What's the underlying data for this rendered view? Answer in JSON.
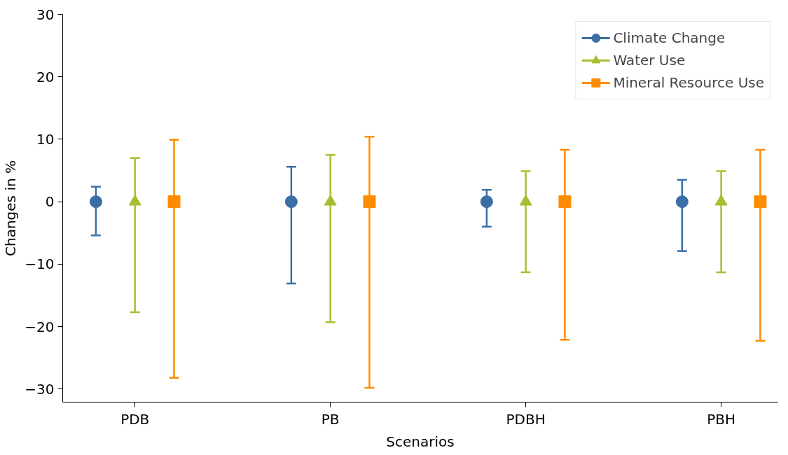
{
  "chart_data": {
    "type": "scatter",
    "xlabel": "Scenarios",
    "ylabel": "Changes in %",
    "categories": [
      "PDB",
      "PB",
      "PDBH",
      "PBH"
    ],
    "ylim": [
      -32.1,
      30
    ],
    "yticks": [
      -30,
      -20,
      -10,
      0,
      10,
      20,
      30
    ],
    "grid": false,
    "legend": "top right",
    "series": [
      {
        "name": "Climate Change",
        "color": "#3a6ea5",
        "marker": "circle",
        "values": [
          0,
          0,
          0,
          0
        ],
        "errors": [
          [
            -5.4,
            2.4
          ],
          [
            -13.1,
            5.6
          ],
          [
            -4.0,
            1.9
          ],
          [
            -7.9,
            3.5
          ]
        ]
      },
      {
        "name": "Water Use",
        "color": "#a5bf32",
        "marker": "triangle",
        "values": [
          0,
          0,
          0,
          0
        ],
        "errors": [
          [
            -17.7,
            7.0
          ],
          [
            -19.3,
            7.5
          ],
          [
            -11.3,
            4.9
          ],
          [
            -11.3,
            4.9
          ]
        ]
      },
      {
        "name": "Mineral Resource Use",
        "color": "#ff8c00",
        "marker": "square",
        "values": [
          0,
          0,
          0,
          0
        ],
        "errors": [
          [
            -28.2,
            9.9
          ],
          [
            -29.8,
            10.4
          ],
          [
            -22.1,
            8.3
          ],
          [
            -22.3,
            8.3
          ]
        ]
      }
    ]
  }
}
